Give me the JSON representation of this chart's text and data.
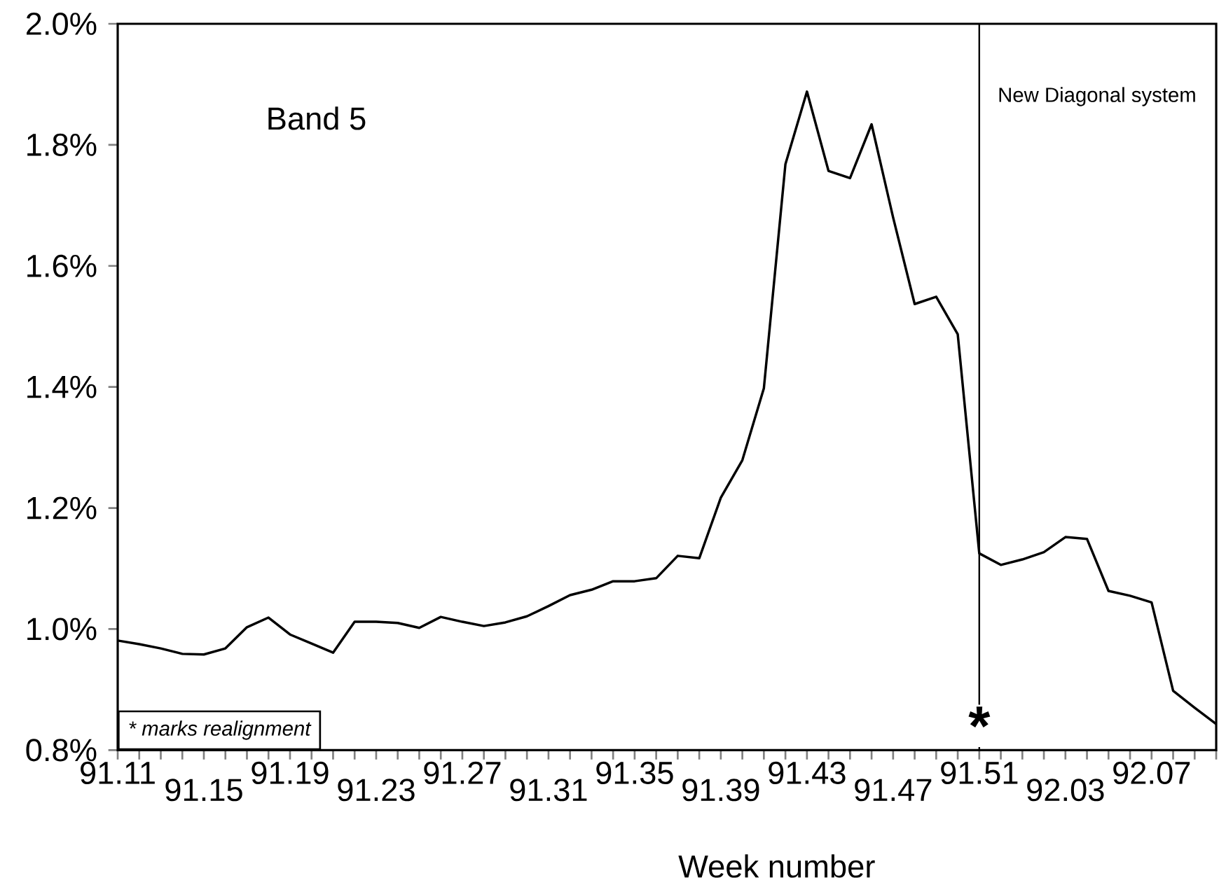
{
  "chart_data": {
    "type": "line",
    "xlabel": "Week number",
    "categories": [
      "91.11",
      null,
      null,
      null,
      "91.15",
      null,
      null,
      null,
      "91.19",
      null,
      null,
      null,
      "91.23",
      null,
      null,
      null,
      "91.27",
      null,
      null,
      null,
      "91.31",
      null,
      null,
      null,
      "91.35",
      null,
      null,
      null,
      "91.39",
      null,
      null,
      null,
      "91.43",
      null,
      null,
      null,
      "91.47",
      null,
      null,
      null,
      "91.51",
      null,
      null,
      null,
      "92.03",
      null,
      null,
      null,
      "92.07",
      null,
      null,
      null
    ],
    "series": [
      {
        "color": "#000000",
        "values": [
          0.981,
          0.975,
          0.968,
          0.959,
          0.958,
          0.968,
          1.003,
          1.019,
          0.991,
          0.976,
          0.961,
          1.012,
          1.012,
          1.01,
          1.002,
          1.02,
          1.012,
          1.005,
          1.011,
          1.021,
          1.038,
          1.056,
          1.065,
          1.079,
          1.079,
          1.084,
          1.121,
          1.117,
          1.217,
          1.279,
          1.398,
          1.768,
          1.888,
          1.757,
          1.745,
          1.834,
          1.68,
          1.537,
          1.549,
          1.487,
          1.125,
          1.106,
          1.115,
          1.127,
          1.152,
          1.149,
          1.063,
          1.055,
          1.044,
          0.898,
          0.87,
          0.843
        ]
      }
    ],
    "ylim": [
      0.8,
      2.0
    ],
    "yticks": [
      {
        "value": 0.8,
        "label": "0.8%"
      },
      {
        "value": 1.0,
        "label": "1.0%"
      },
      {
        "value": 1.2,
        "label": "1.2%"
      },
      {
        "value": 1.4,
        "label": "1.4%"
      },
      {
        "value": 1.6,
        "label": "1.6%"
      },
      {
        "value": 1.8,
        "label": "1.8%"
      },
      {
        "value": 2.0,
        "label": "2.0%"
      }
    ],
    "ref_lines": [
      {
        "axis": "x",
        "value": "91.51",
        "label": "New Diagonal system",
        "color": "#000000"
      }
    ],
    "annotations": [
      "Band 5",
      {
        "text": "*",
        "x": "91.51",
        "y": 0.84
      },
      "* marks realignment"
    ],
    "grid": false,
    "marker": "none",
    "line_style": "solid"
  }
}
